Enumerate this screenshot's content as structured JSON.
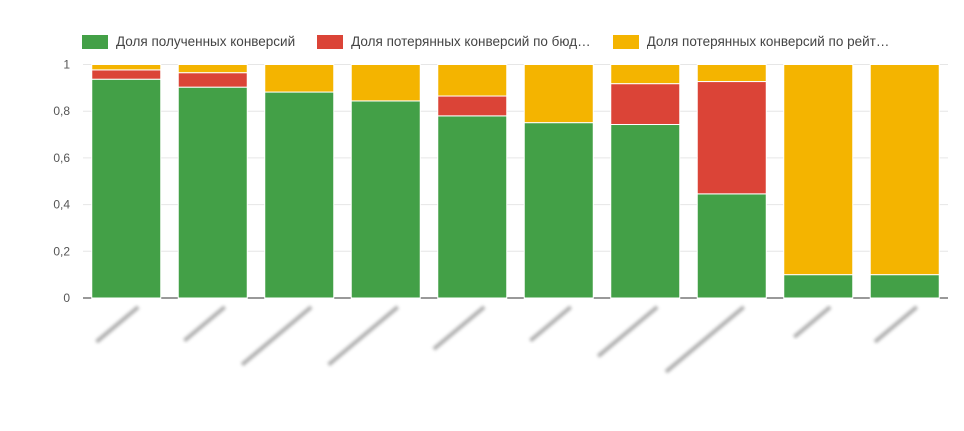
{
  "chart_data": {
    "type": "bar",
    "stacked": true,
    "title": "",
    "xlabel": "",
    "ylabel": "",
    "ylim": [
      0,
      1
    ],
    "yticks": [
      "0",
      "0,2",
      "0,4",
      "0,6",
      "0,8",
      "1"
    ],
    "ytick_values": [
      0,
      0.2,
      0.4,
      0.6,
      0.8,
      1
    ],
    "grid": true,
    "legend_position": "top-left",
    "categories_note_blurred": true,
    "categories": [
      "",
      "",
      "",
      "",
      "",
      "",
      "",
      "",
      "",
      ""
    ],
    "series": [
      {
        "name": "Доля полученных конверсий",
        "legend_label": "Доля полученных конверсий",
        "color": "#43a047",
        "values": [
          0.937,
          0.903,
          0.882,
          0.844,
          0.78,
          0.751,
          0.743,
          0.446,
          0.1,
          0.1
        ]
      },
      {
        "name": "Доля потерянных конверсий по бюджету",
        "legend_label": "Доля потерянных конверсий по бюд…",
        "color": "#db4437",
        "values": [
          0.04,
          0.062,
          0,
          0,
          0.085,
          0,
          0.175,
          0.481,
          0,
          0
        ]
      },
      {
        "name": "Доля потерянных конверсий по рейтингу",
        "legend_label": "Доля потерянных конверсий по рейт…",
        "color": "#f4b400",
        "values": [
          0.023,
          0.035,
          0.118,
          0.156,
          0.135,
          0.249,
          0.082,
          0.073,
          0.9,
          0.9
        ]
      }
    ]
  }
}
